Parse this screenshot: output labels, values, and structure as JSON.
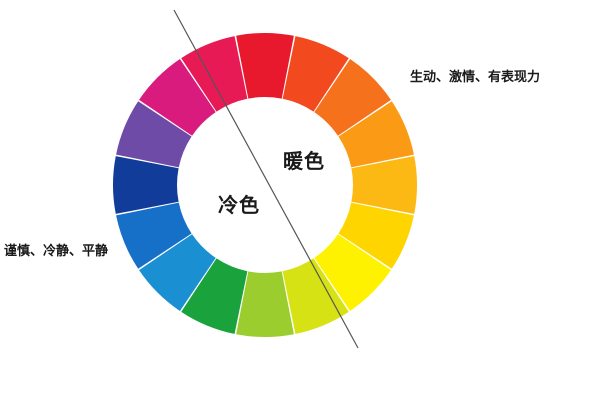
{
  "labels": {
    "warm": "暖色",
    "cool": "冷色",
    "warm_description": "生动、激情、有表现力",
    "cool_description": "谨慎、冷静、平静"
  },
  "wheel": {
    "segments": [
      {
        "name": "red",
        "color": "#e8192c"
      },
      {
        "name": "red-orange",
        "color": "#f24a1e"
      },
      {
        "name": "orange",
        "color": "#f6711b"
      },
      {
        "name": "yellow-orange",
        "color": "#fb9a14"
      },
      {
        "name": "amber",
        "color": "#fdb913"
      },
      {
        "name": "yellow-light",
        "color": "#ffd500"
      },
      {
        "name": "yellow",
        "color": "#fff200"
      },
      {
        "name": "yellow-green",
        "color": "#d7e214"
      },
      {
        "name": "lime-green",
        "color": "#9ccd2e"
      },
      {
        "name": "green",
        "color": "#1aa33c"
      },
      {
        "name": "teal-blue",
        "color": "#1a8fd2"
      },
      {
        "name": "blue",
        "color": "#1670c8"
      },
      {
        "name": "dark-blue",
        "color": "#123c99"
      },
      {
        "name": "violet",
        "color": "#6f4ba8"
      },
      {
        "name": "magenta",
        "color": "#d81b7c"
      },
      {
        "name": "rose",
        "color": "#e81a55"
      }
    ],
    "divider_color": "#555555"
  }
}
